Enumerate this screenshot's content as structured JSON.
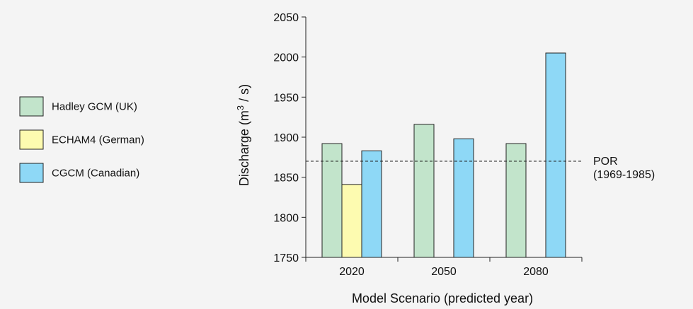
{
  "chart_data": {
    "type": "bar",
    "categories": [
      "2020",
      "2050",
      "2080"
    ],
    "series": [
      {
        "name": "Hadley GCM (UK)",
        "color": "#c2e4cb",
        "values": [
          1892,
          1916,
          1892
        ]
      },
      {
        "name": "ECHAM4 (German)",
        "color": "#fdfbb0",
        "values": [
          1841,
          null,
          null
        ]
      },
      {
        "name": "CGCM (Canadian)",
        "color": "#8ed8f6",
        "values": [
          1883,
          1898,
          2005
        ]
      }
    ],
    "xlabel": "Model Scenario (predicted year)",
    "ylabel_prefix": "Discharge (m",
    "ylabel_sup": "3",
    "ylabel_suffix": " / s)",
    "ylim": [
      1750,
      2050
    ],
    "yticks": [
      1750,
      1800,
      1850,
      1900,
      1950,
      2000,
      2050
    ],
    "reference_line": {
      "value": 1870,
      "label_line1": "POR",
      "label_line2": "(1969-1985)",
      "style": "dashed"
    },
    "legend_position": "left",
    "grid": false
  }
}
